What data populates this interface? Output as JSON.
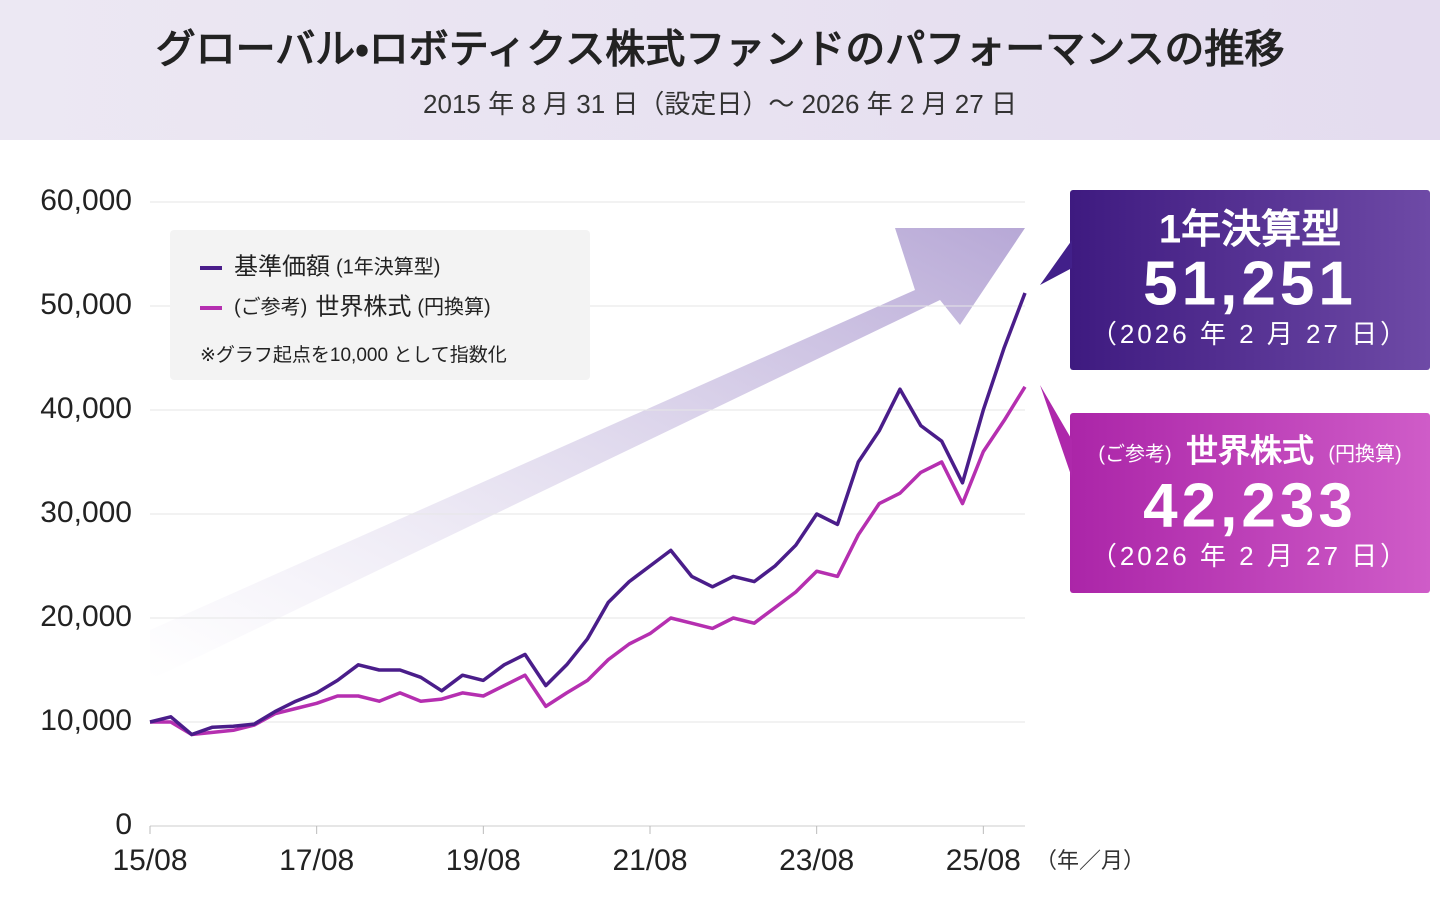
{
  "chart_data": {
    "type": "line",
    "title": "グローバル・ロボティクス株式ファンドのパフォーマンスの推移",
    "subtitle": "2015 年 8 月 31 日（設定日）～ 2026 年 2 月 27 日",
    "x": [
      "15/08",
      "15/11",
      "16/02",
      "16/05",
      "16/08",
      "16/11",
      "17/02",
      "17/05",
      "17/08",
      "17/11",
      "18/02",
      "18/05",
      "18/08",
      "18/11",
      "19/02",
      "19/05",
      "19/08",
      "19/11",
      "20/02",
      "20/05",
      "20/08",
      "20/11",
      "21/02",
      "21/05",
      "21/08",
      "21/11",
      "22/02",
      "22/05",
      "22/08",
      "22/11",
      "23/02",
      "23/05",
      "23/08",
      "23/11",
      "24/02",
      "24/05",
      "24/08",
      "24/11",
      "25/02",
      "25/05",
      "25/08",
      "25/11",
      "26/02"
    ],
    "xticks": [
      "15/08",
      "17/08",
      "19/08",
      "21/08",
      "23/08",
      "25/08"
    ],
    "x_unit": "（年／月）",
    "ylim": [
      0,
      60000
    ],
    "yticks": [
      0,
      {
        "value": 10000,
        "label": "10,000"
      },
      {
        "value": 20000,
        "label": "20,000"
      },
      {
        "value": 30000,
        "label": "30,000"
      },
      {
        "value": 40000,
        "label": "40,000"
      },
      {
        "value": 50000,
        "label": "50,000"
      },
      {
        "value": 60000,
        "label": "60,000"
      }
    ],
    "grid": true,
    "series": [
      {
        "name": "基準価額",
        "name_note": "(1年決算型)",
        "color": "#4a1d8a",
        "values": [
          10000,
          10500,
          8800,
          9500,
          9600,
          9800,
          11000,
          12000,
          12800,
          14000,
          15500,
          15000,
          15000,
          14300,
          13000,
          14500,
          14000,
          15500,
          16500,
          13500,
          15500,
          18000,
          21500,
          23500,
          25000,
          26500,
          24000,
          23000,
          24000,
          23500,
          25000,
          27000,
          30000,
          29000,
          35000,
          38000,
          42000,
          38500,
          37000,
          33000,
          40000,
          46000,
          51251
        ]
      },
      {
        "name": "世界株式",
        "name_prefix": "(ご参考)",
        "name_note": "(円換算)",
        "color": "#b52fb0",
        "values": [
          10000,
          10000,
          8800,
          9000,
          9200,
          9700,
          10800,
          11300,
          11800,
          12500,
          12500,
          12000,
          12800,
          12000,
          12200,
          12800,
          12500,
          13500,
          14500,
          11500,
          12800,
          14000,
          16000,
          17500,
          18500,
          20000,
          19500,
          19000,
          20000,
          19500,
          21000,
          22500,
          24500,
          24000,
          28000,
          31000,
          32000,
          34000,
          35000,
          31000,
          36000,
          39000,
          42233
        ]
      }
    ],
    "legend_note": "※グラフ起点を10,000 として指数化",
    "callouts": [
      {
        "title": "1年決算型",
        "value_label": "51,251",
        "date": "（2026 年 2 月 27 日）"
      },
      {
        "value_label": "42,233",
        "date": "（2026 年 2 月 27 日）"
      }
    ]
  }
}
